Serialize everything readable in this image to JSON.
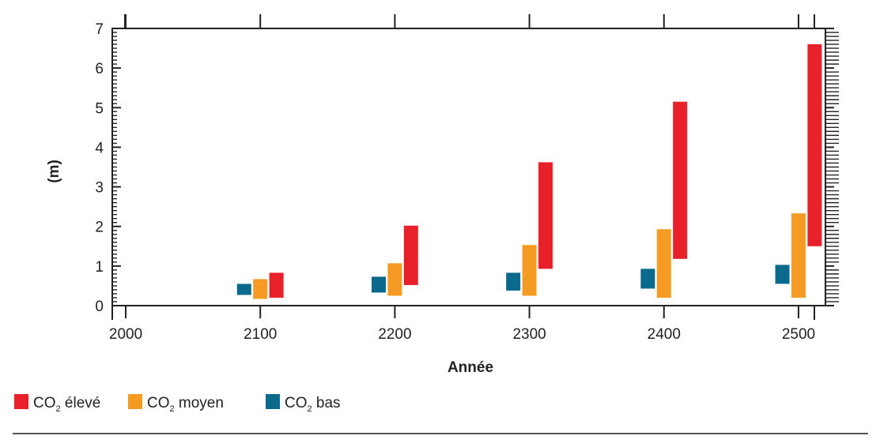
{
  "chart_data": {
    "type": "bar",
    "title": "",
    "xlabel": "Année",
    "ylabel": "(m)",
    "x_ticks": [
      "2000",
      "2100",
      "2200",
      "2300",
      "2400",
      "2500"
    ],
    "x_range": [
      1990,
      2520
    ],
    "y_ticks": [
      "0",
      "1",
      "2",
      "3",
      "4",
      "5",
      "6",
      "7"
    ],
    "ylim": [
      0,
      7
    ],
    "grid": false,
    "legend_position": "bottom-left",
    "series": [
      {
        "key": "high",
        "name": "CO2 élevé",
        "legend_main": "CO",
        "legend_sub": "2",
        "legend_rest": " élevé",
        "color": "#e8202a",
        "offset_years": 12,
        "ranges": [
          {
            "year": 2100,
            "low": 0.2,
            "high": 0.83
          },
          {
            "year": 2200,
            "low": 0.52,
            "high": 2.02
          },
          {
            "year": 2300,
            "low": 0.93,
            "high": 3.62
          },
          {
            "year": 2400,
            "low": 1.18,
            "high": 5.15
          },
          {
            "year": 2500,
            "low": 1.5,
            "high": 6.6
          }
        ]
      },
      {
        "key": "medium",
        "name": "CO2 moyen",
        "legend_main": "CO",
        "legend_sub": "2",
        "legend_rest": " moyen",
        "color": "#f59a23",
        "offset_years": 0,
        "ranges": [
          {
            "year": 2100,
            "low": 0.17,
            "high": 0.67
          },
          {
            "year": 2200,
            "low": 0.25,
            "high": 1.07
          },
          {
            "year": 2300,
            "low": 0.25,
            "high": 1.53
          },
          {
            "year": 2400,
            "low": 0.2,
            "high": 1.93
          },
          {
            "year": 2500,
            "low": 0.2,
            "high": 2.33
          }
        ]
      },
      {
        "key": "low",
        "name": "CO2 bas",
        "legend_main": "CO",
        "legend_sub": "2",
        "legend_rest": " bas",
        "color": "#0b6a8c",
        "offset_years": -12,
        "ranges": [
          {
            "year": 2100,
            "low": 0.27,
            "high": 0.55
          },
          {
            "year": 2200,
            "low": 0.33,
            "high": 0.73
          },
          {
            "year": 2300,
            "low": 0.38,
            "high": 0.83
          },
          {
            "year": 2400,
            "low": 0.43,
            "high": 0.93
          },
          {
            "year": 2500,
            "low": 0.55,
            "high": 1.03
          }
        ]
      }
    ]
  }
}
